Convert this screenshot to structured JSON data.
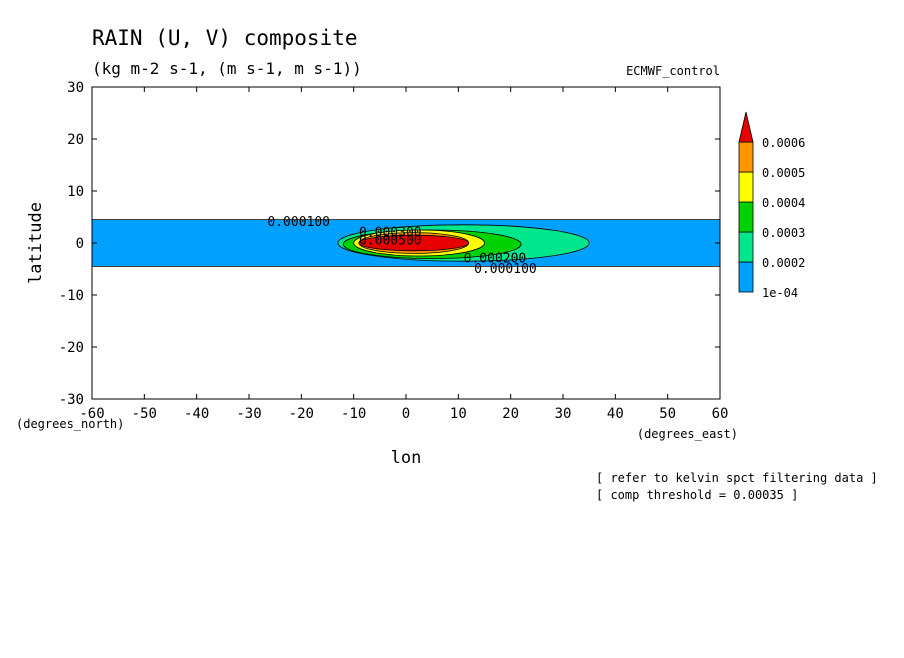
{
  "header": {
    "title": "RAIN (U, V) composite",
    "units": "(kg m-2 s-1, (m s-1, m s-1))",
    "model": "ECMWF_control"
  },
  "notes": [
    "[ refer to kelvin spct filtering data ]",
    "[ comp threshold = 0.00035 ]"
  ],
  "colors": {
    "level1": "#00a0ff",
    "level2": "#00e68c",
    "level3": "#00d200",
    "level4": "#ffff00",
    "level5": "#ff9600",
    "level6": "#e60000",
    "contour": "#000000",
    "frame": "#000000"
  },
  "chart_data": {
    "type": "contour",
    "title": "RAIN (U, V) composite",
    "subtitle": "(kg m-2 s-1, (m s-1, m s-1))",
    "xlabel": "lon",
    "ylabel": "latitude",
    "x_unit_label": "(degrees_east)",
    "y_unit_label": "(degrees_north)",
    "xlim": [
      -60,
      60
    ],
    "ylim": [
      -30,
      30
    ],
    "xticks": [
      -60,
      -50,
      -40,
      -30,
      -20,
      -10,
      0,
      10,
      20,
      30,
      40,
      50,
      60
    ],
    "yticks": [
      -30,
      -20,
      -10,
      0,
      10,
      20,
      30
    ],
    "colorbar": {
      "levels": [
        0.0001,
        0.0002,
        0.0003,
        0.0004,
        0.0005,
        0.0006
      ],
      "labels": [
        "1e-04",
        "0.0002",
        "0.0003",
        "0.0004",
        "0.0005",
        "0.0006"
      ],
      "colors": [
        "#00a0ff",
        "#00e68c",
        "#00d200",
        "#ffff00",
        "#ff9600",
        "#e60000"
      ],
      "extend": "max"
    },
    "contour_labels": [
      {
        "text": "0.000100",
        "lon": -20.5,
        "lat": 4
      },
      {
        "text": "0.000300",
        "lon": -3,
        "lat": 2
      },
      {
        "text": "0.000500",
        "lon": -3,
        "lat": 0.5
      },
      {
        "text": "0.000200",
        "lon": 17,
        "lat": -3
      },
      {
        "text": "0.000100",
        "lon": 19,
        "lat": -5
      }
    ],
    "regions": [
      {
        "level": 0.0001,
        "lon_min": -60,
        "lon_max": 60,
        "lat_min": -4.5,
        "lat_max": 4.5
      },
      {
        "level": 0.0002,
        "lon_min": -13,
        "lon_max": 35,
        "lat_min": -3.5,
        "lat_max": 3.5
      },
      {
        "level": 0.0003,
        "lon_min": -12,
        "lon_max": 22,
        "lat_min": -3,
        "lat_max": 2.5
      },
      {
        "level": 0.0004,
        "lon_min": -10,
        "lon_max": 15,
        "lat_min": -2.5,
        "lat_max": 2.5
      },
      {
        "level": 0.0005,
        "lon_min": -9,
        "lon_max": 12,
        "lat_min": -2,
        "lat_max": 2
      },
      {
        "level": 0.0006,
        "lon_min": -9,
        "lon_max": 12,
        "lat_min": -1.5,
        "lat_max": 1.5
      }
    ],
    "grid": false
  }
}
